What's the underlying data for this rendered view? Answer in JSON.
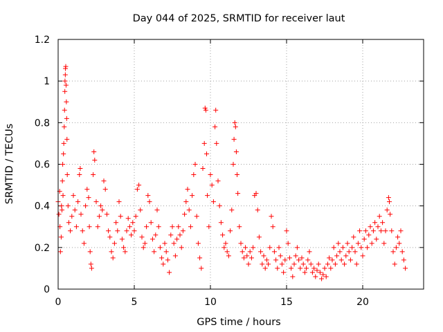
{
  "chart_data": {
    "type": "scatter",
    "title": "Day 044 of 2025, SRMTID for receiver laut",
    "xlabel": "GPS time / hours",
    "ylabel": "SRMTID / TECUs",
    "xlim": [
      0,
      24
    ],
    "ylim": [
      0,
      1.2
    ],
    "x_ticks": [
      0,
      5,
      10,
      15,
      20
    ],
    "y_ticks": [
      0,
      0.2,
      0.4,
      0.6,
      0.8,
      1,
      1.2
    ],
    "x_tick_labels": [
      "0",
      "5",
      "10",
      "15",
      "20"
    ],
    "y_tick_labels": [
      "0",
      "0.2",
      "0.4",
      "0.6",
      "0.8",
      "1",
      "1.2"
    ],
    "grid": true,
    "marker": "+",
    "color": "#ff0000",
    "series": [
      {
        "name": "SRMTID",
        "points": [
          [
            0.0,
            0.42
          ],
          [
            0.05,
            0.36
          ],
          [
            0.1,
            0.47
          ],
          [
            0.12,
            0.3
          ],
          [
            0.15,
            0.18
          ],
          [
            0.2,
            0.25
          ],
          [
            0.22,
            0.4
          ],
          [
            0.25,
            0.38
          ],
          [
            0.28,
            0.52
          ],
          [
            0.3,
            0.6
          ],
          [
            0.32,
            0.45
          ],
          [
            0.35,
            0.65
          ],
          [
            0.37,
            0.7
          ],
          [
            0.4,
            0.78
          ],
          [
            0.42,
            0.86
          ],
          [
            0.44,
            0.95
          ],
          [
            0.45,
            1.0
          ],
          [
            0.47,
            1.03
          ],
          [
            0.48,
            1.06
          ],
          [
            0.5,
            1.07
          ],
          [
            0.52,
            0.98
          ],
          [
            0.54,
            0.9
          ],
          [
            0.56,
            0.82
          ],
          [
            0.58,
            0.72
          ],
          [
            0.6,
            0.55
          ],
          [
            0.65,
            0.4
          ],
          [
            0.7,
            0.32
          ],
          [
            0.8,
            0.28
          ],
          [
            0.9,
            0.35
          ],
          [
            1.0,
            0.45
          ],
          [
            1.1,
            0.38
          ],
          [
            1.2,
            0.3
          ],
          [
            1.3,
            0.42
          ],
          [
            1.4,
            0.55
          ],
          [
            1.45,
            0.58
          ],
          [
            1.5,
            0.36
          ],
          [
            1.6,
            0.28
          ],
          [
            1.7,
            0.22
          ],
          [
            1.8,
            0.4
          ],
          [
            1.9,
            0.48
          ],
          [
            2.0,
            0.44
          ],
          [
            2.05,
            0.3
          ],
          [
            2.1,
            0.18
          ],
          [
            2.15,
            0.12
          ],
          [
            2.2,
            0.1
          ],
          [
            2.3,
            0.55
          ],
          [
            2.35,
            0.66
          ],
          [
            2.4,
            0.62
          ],
          [
            2.5,
            0.42
          ],
          [
            2.6,
            0.3
          ],
          [
            2.7,
            0.35
          ],
          [
            2.8,
            0.4
          ],
          [
            2.9,
            0.38
          ],
          [
            3.0,
            0.52
          ],
          [
            3.1,
            0.48
          ],
          [
            3.2,
            0.36
          ],
          [
            3.3,
            0.28
          ],
          [
            3.4,
            0.25
          ],
          [
            3.5,
            0.18
          ],
          [
            3.6,
            0.15
          ],
          [
            3.7,
            0.22
          ],
          [
            3.8,
            0.32
          ],
          [
            3.9,
            0.28
          ],
          [
            4.0,
            0.42
          ],
          [
            4.1,
            0.35
          ],
          [
            4.2,
            0.24
          ],
          [
            4.3,
            0.2
          ],
          [
            4.4,
            0.18
          ],
          [
            4.5,
            0.28
          ],
          [
            4.6,
            0.34
          ],
          [
            4.7,
            0.3
          ],
          [
            4.8,
            0.26
          ],
          [
            4.9,
            0.32
          ],
          [
            5.0,
            0.28
          ],
          [
            5.1,
            0.35
          ],
          [
            5.2,
            0.48
          ],
          [
            5.3,
            0.5
          ],
          [
            5.4,
            0.38
          ],
          [
            5.5,
            0.25
          ],
          [
            5.6,
            0.2
          ],
          [
            5.7,
            0.22
          ],
          [
            5.8,
            0.3
          ],
          [
            5.9,
            0.45
          ],
          [
            6.0,
            0.42
          ],
          [
            6.1,
            0.32
          ],
          [
            6.2,
            0.24
          ],
          [
            6.3,
            0.18
          ],
          [
            6.4,
            0.26
          ],
          [
            6.5,
            0.38
          ],
          [
            6.6,
            0.3
          ],
          [
            6.7,
            0.2
          ],
          [
            6.8,
            0.15
          ],
          [
            6.9,
            0.12
          ],
          [
            7.0,
            0.22
          ],
          [
            7.1,
            0.18
          ],
          [
            7.2,
            0.14
          ],
          [
            7.3,
            0.08
          ],
          [
            7.4,
            0.26
          ],
          [
            7.5,
            0.3
          ],
          [
            7.6,
            0.22
          ],
          [
            7.7,
            0.16
          ],
          [
            7.8,
            0.24
          ],
          [
            7.9,
            0.3
          ],
          [
            8.0,
            0.26
          ],
          [
            8.1,
            0.2
          ],
          [
            8.2,
            0.28
          ],
          [
            8.3,
            0.36
          ],
          [
            8.4,
            0.42
          ],
          [
            8.5,
            0.48
          ],
          [
            8.6,
            0.38
          ],
          [
            8.7,
            0.3
          ],
          [
            8.8,
            0.45
          ],
          [
            8.9,
            0.55
          ],
          [
            9.0,
            0.6
          ],
          [
            9.1,
            0.35
          ],
          [
            9.2,
            0.22
          ],
          [
            9.3,
            0.15
          ],
          [
            9.4,
            0.1
          ],
          [
            9.5,
            0.58
          ],
          [
            9.6,
            0.7
          ],
          [
            9.65,
            0.87
          ],
          [
            9.7,
            0.86
          ],
          [
            9.75,
            0.65
          ],
          [
            9.8,
            0.45
          ],
          [
            9.9,
            0.3
          ],
          [
            10.0,
            0.55
          ],
          [
            10.1,
            0.5
          ],
          [
            10.2,
            0.42
          ],
          [
            10.3,
            0.78
          ],
          [
            10.35,
            0.86
          ],
          [
            10.4,
            0.7
          ],
          [
            10.5,
            0.52
          ],
          [
            10.6,
            0.4
          ],
          [
            10.7,
            0.32
          ],
          [
            10.8,
            0.26
          ],
          [
            10.9,
            0.2
          ],
          [
            11.0,
            0.22
          ],
          [
            11.1,
            0.18
          ],
          [
            11.2,
            0.16
          ],
          [
            11.3,
            0.28
          ],
          [
            11.4,
            0.38
          ],
          [
            11.5,
            0.6
          ],
          [
            11.55,
            0.72
          ],
          [
            11.6,
            0.8
          ],
          [
            11.65,
            0.78
          ],
          [
            11.7,
            0.66
          ],
          [
            11.75,
            0.55
          ],
          [
            11.8,
            0.46
          ],
          [
            11.9,
            0.3
          ],
          [
            12.0,
            0.22
          ],
          [
            12.1,
            0.18
          ],
          [
            12.2,
            0.15
          ],
          [
            12.3,
            0.2
          ],
          [
            12.4,
            0.16
          ],
          [
            12.5,
            0.12
          ],
          [
            12.6,
            0.18
          ],
          [
            12.7,
            0.15
          ],
          [
            12.8,
            0.2
          ],
          [
            12.9,
            0.45
          ],
          [
            13.0,
            0.46
          ],
          [
            13.1,
            0.38
          ],
          [
            13.2,
            0.25
          ],
          [
            13.3,
            0.18
          ],
          [
            13.4,
            0.12
          ],
          [
            13.5,
            0.16
          ],
          [
            13.6,
            0.1
          ],
          [
            13.7,
            0.14
          ],
          [
            13.8,
            0.12
          ],
          [
            13.9,
            0.2
          ],
          [
            14.0,
            0.35
          ],
          [
            14.1,
            0.3
          ],
          [
            14.2,
            0.18
          ],
          [
            14.3,
            0.14
          ],
          [
            14.4,
            0.1
          ],
          [
            14.5,
            0.2
          ],
          [
            14.6,
            0.16
          ],
          [
            14.7,
            0.12
          ],
          [
            14.8,
            0.08
          ],
          [
            14.9,
            0.14
          ],
          [
            15.0,
            0.28
          ],
          [
            15.1,
            0.22
          ],
          [
            15.2,
            0.15
          ],
          [
            15.3,
            0.1
          ],
          [
            15.4,
            0.06
          ],
          [
            15.5,
            0.12
          ],
          [
            15.6,
            0.16
          ],
          [
            15.7,
            0.2
          ],
          [
            15.8,
            0.14
          ],
          [
            15.9,
            0.1
          ],
          [
            16.0,
            0.15
          ],
          [
            16.1,
            0.12
          ],
          [
            16.2,
            0.08
          ],
          [
            16.3,
            0.1
          ],
          [
            16.4,
            0.14
          ],
          [
            16.5,
            0.18
          ],
          [
            16.6,
            0.12
          ],
          [
            16.7,
            0.08
          ],
          [
            16.8,
            0.1
          ],
          [
            16.9,
            0.06
          ],
          [
            17.0,
            0.09
          ],
          [
            17.1,
            0.12
          ],
          [
            17.2,
            0.08
          ],
          [
            17.3,
            0.05
          ],
          [
            17.4,
            0.07
          ],
          [
            17.5,
            0.1
          ],
          [
            17.6,
            0.06
          ],
          [
            17.7,
            0.12
          ],
          [
            17.8,
            0.15
          ],
          [
            17.9,
            0.1
          ],
          [
            18.0,
            0.14
          ],
          [
            18.1,
            0.2
          ],
          [
            18.2,
            0.12
          ],
          [
            18.3,
            0.16
          ],
          [
            18.4,
            0.22
          ],
          [
            18.5,
            0.18
          ],
          [
            18.6,
            0.14
          ],
          [
            18.7,
            0.2
          ],
          [
            18.8,
            0.12
          ],
          [
            18.9,
            0.16
          ],
          [
            19.0,
            0.22
          ],
          [
            19.1,
            0.18
          ],
          [
            19.2,
            0.14
          ],
          [
            19.3,
            0.2
          ],
          [
            19.4,
            0.25
          ],
          [
            19.5,
            0.18
          ],
          [
            19.6,
            0.12
          ],
          [
            19.7,
            0.22
          ],
          [
            19.8,
            0.28
          ],
          [
            19.9,
            0.2
          ],
          [
            20.0,
            0.16
          ],
          [
            20.1,
            0.24
          ],
          [
            20.2,
            0.28
          ],
          [
            20.3,
            0.2
          ],
          [
            20.4,
            0.26
          ],
          [
            20.5,
            0.3
          ],
          [
            20.6,
            0.22
          ],
          [
            20.7,
            0.28
          ],
          [
            20.8,
            0.32
          ],
          [
            20.9,
            0.24
          ],
          [
            21.0,
            0.3
          ],
          [
            21.1,
            0.35
          ],
          [
            21.2,
            0.28
          ],
          [
            21.3,
            0.32
          ],
          [
            21.4,
            0.22
          ],
          [
            21.5,
            0.28
          ],
          [
            21.6,
            0.38
          ],
          [
            21.7,
            0.44
          ],
          [
            21.75,
            0.42
          ],
          [
            21.8,
            0.36
          ],
          [
            21.9,
            0.28
          ],
          [
            22.0,
            0.18
          ],
          [
            22.1,
            0.12
          ],
          [
            22.2,
            0.2
          ],
          [
            22.3,
            0.25
          ],
          [
            22.4,
            0.22
          ],
          [
            22.5,
            0.28
          ],
          [
            22.6,
            0.18
          ],
          [
            22.7,
            0.14
          ],
          [
            22.8,
            0.1
          ]
        ]
      }
    ]
  }
}
